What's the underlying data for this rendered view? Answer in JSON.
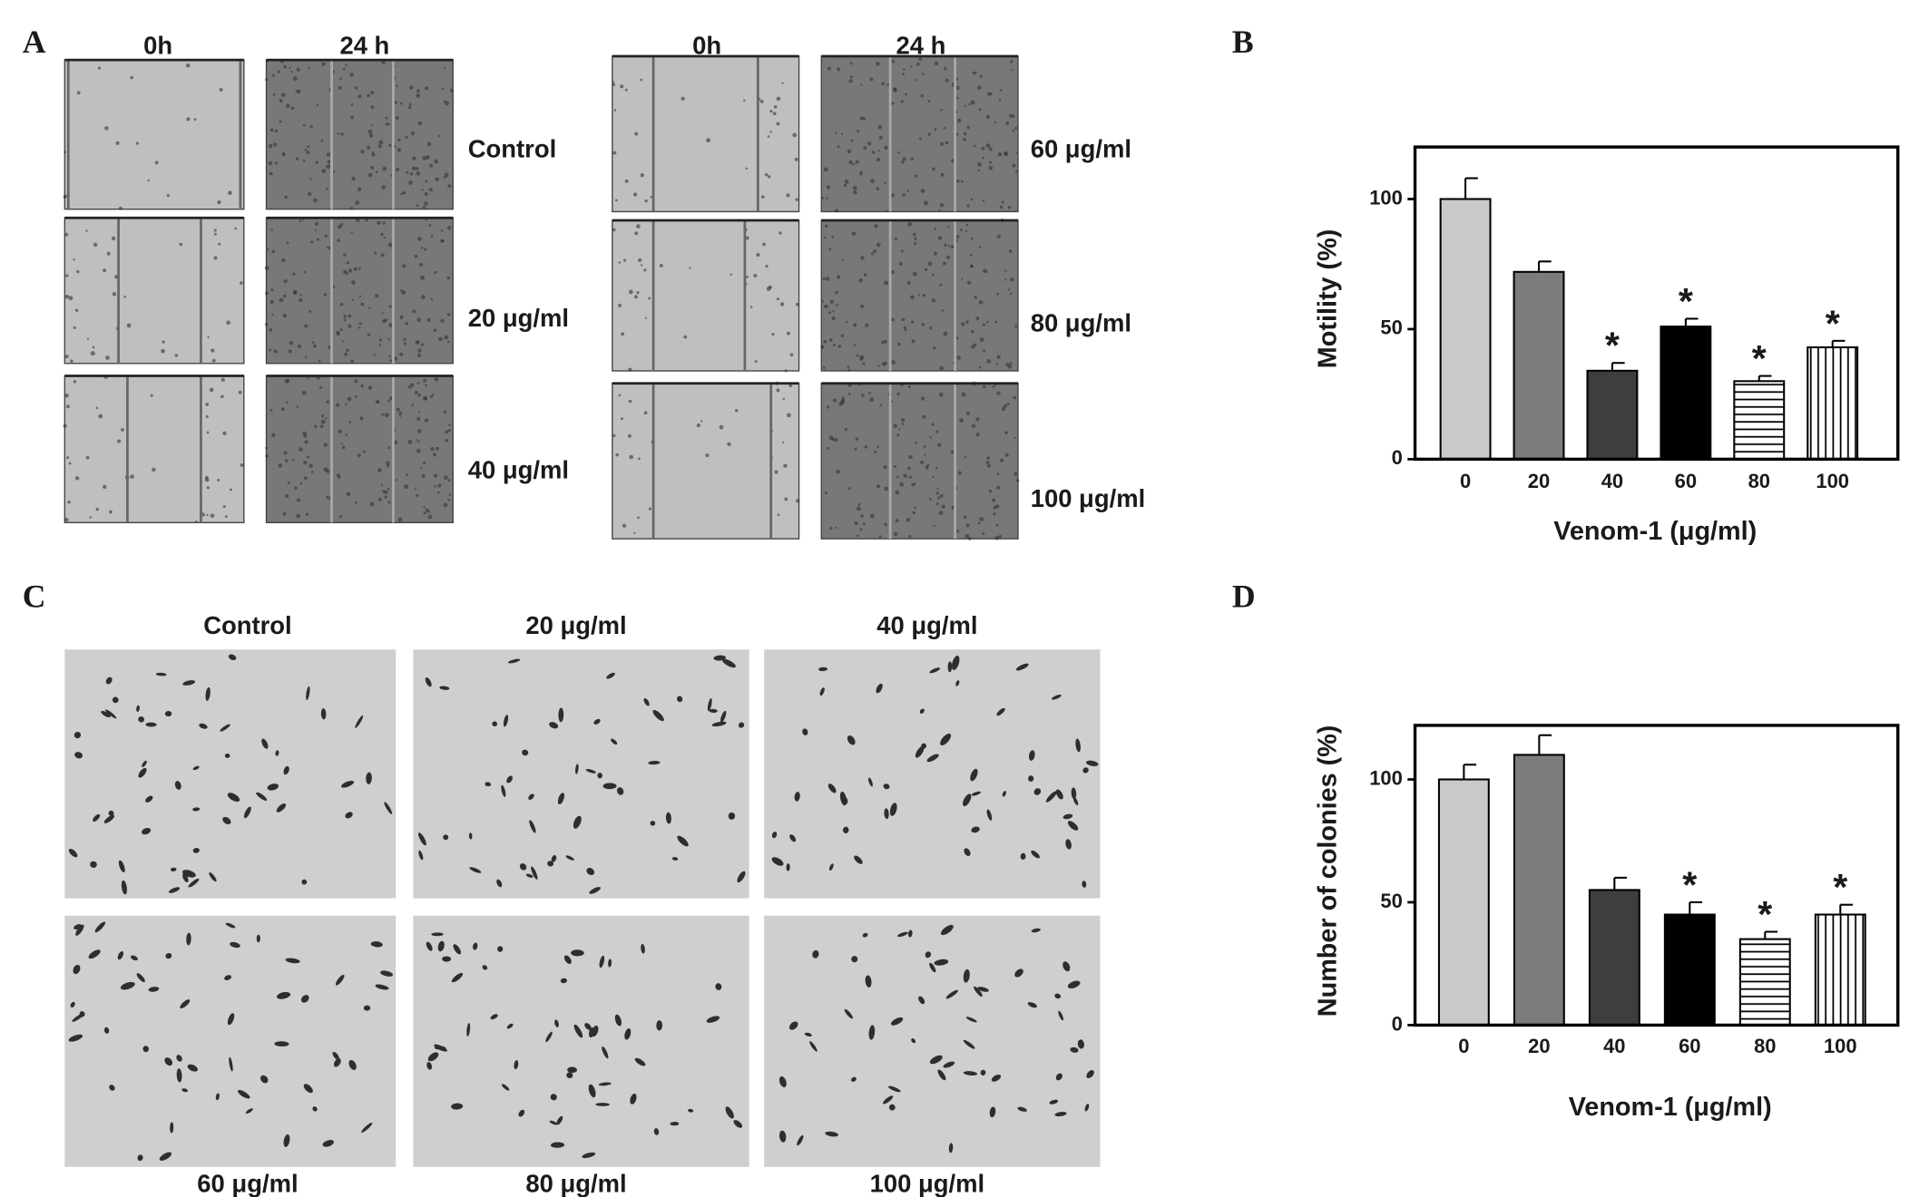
{
  "panels": {
    "A": {
      "label": "A",
      "groups": [
        {
          "headers": [
            "0h",
            "24 h"
          ],
          "rows": [
            "Control",
            "20 μg/ml",
            "40 μg/ml"
          ]
        },
        {
          "headers": [
            "0h",
            "24 h"
          ],
          "rows": [
            "60 μg/ml",
            "80 μg/ml",
            "100 μg/ml"
          ]
        }
      ]
    },
    "B": {
      "label": "B"
    },
    "C": {
      "label": "C",
      "top": [
        "Control",
        "20 μg/ml",
        "40 μg/ml"
      ],
      "bottom": [
        "60 μg/ml",
        "80 μg/ml",
        "100 μg/ml"
      ]
    },
    "D": {
      "label": "D"
    }
  },
  "chart_data": [
    {
      "type": "bar",
      "x_label": "Venom-1 (μg/ml)",
      "y_label": "Motility (%)",
      "categories": [
        "0",
        "20",
        "40",
        "60",
        "80",
        "100"
      ],
      "values": [
        100,
        72,
        34,
        51,
        30,
        43
      ],
      "errors": [
        8,
        4,
        3,
        3,
        2,
        2.5
      ],
      "markers": [
        null,
        null,
        "*",
        "*",
        "*",
        "*"
      ],
      "bar_styles": [
        {
          "color": "#c9c9cb"
        },
        {
          "color": "#7c7c7e"
        },
        {
          "color": "#3e3e40"
        },
        {
          "color": "#000000"
        },
        {
          "color": "#ffffff",
          "hatch": "horizontal"
        },
        {
          "color": "#ffffff",
          "hatch": "vertical"
        }
      ],
      "ylim": [
        0,
        120
      ],
      "yticks": [
        0,
        50,
        100
      ],
      "frame": true
    },
    {
      "type": "bar",
      "x_label": "Venom-1 (μg/ml)",
      "y_label": "Number of colonies (%)",
      "categories": [
        "0",
        "20",
        "40",
        "60",
        "80",
        "100"
      ],
      "values": [
        100,
        110,
        55,
        45,
        35,
        45
      ],
      "errors": [
        6,
        8,
        5,
        5,
        3,
        4
      ],
      "markers": [
        null,
        null,
        null,
        "*",
        "*",
        "*"
      ],
      "bar_styles": [
        {
          "color": "#c9c9cb"
        },
        {
          "color": "#7c7c7e"
        },
        {
          "color": "#3e3e40"
        },
        {
          "color": "#000000"
        },
        {
          "color": "#ffffff",
          "hatch": "horizontal"
        },
        {
          "color": "#ffffff",
          "hatch": "vertical"
        }
      ],
      "ylim": [
        0,
        122
      ],
      "yticks": [
        0,
        50,
        100
      ],
      "frame": true
    }
  ]
}
